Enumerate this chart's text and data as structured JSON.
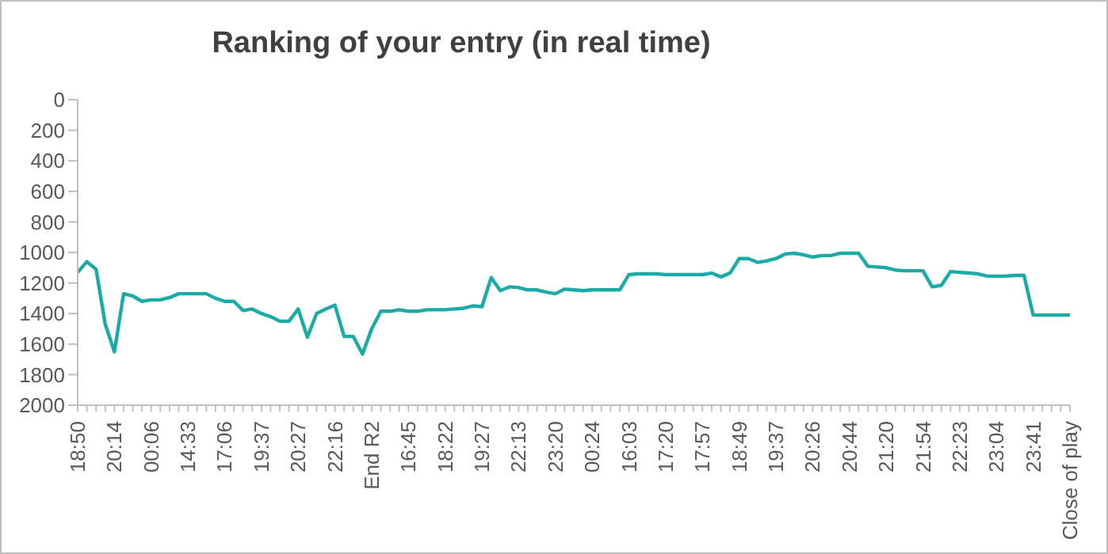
{
  "chart_data": {
    "type": "line",
    "title": "Ranking of your entry (in real time)",
    "categories": [
      "18:50",
      null,
      null,
      null,
      "20:14",
      null,
      null,
      null,
      "00:06",
      null,
      null,
      null,
      "14:33",
      null,
      null,
      null,
      "17:06",
      null,
      null,
      null,
      "19:37",
      null,
      null,
      null,
      "20:27",
      null,
      null,
      null,
      "22:16",
      null,
      null,
      null,
      "End R2",
      null,
      null,
      null,
      "16:45",
      null,
      null,
      null,
      "18:22",
      null,
      null,
      null,
      "19:27",
      null,
      null,
      null,
      "22:13",
      null,
      null,
      null,
      "23:20",
      null,
      null,
      null,
      "00:24",
      null,
      null,
      null,
      "16:03",
      null,
      null,
      null,
      "17:20",
      null,
      null,
      null,
      "17:57",
      null,
      null,
      null,
      "18:49",
      null,
      null,
      null,
      "19:37",
      null,
      null,
      null,
      "20:26",
      null,
      null,
      null,
      "20:44",
      null,
      null,
      null,
      "21:20",
      null,
      null,
      null,
      "21:54",
      null,
      null,
      null,
      "22:23",
      null,
      null,
      null,
      "23:04",
      null,
      null,
      null,
      "23:41",
      null,
      null,
      null,
      "Close of play"
    ],
    "series": [
      {
        "color": "#1aaba6",
        "values": [
          1130,
          1060,
          1110,
          1470,
          1650,
          1270,
          1285,
          1320,
          1310,
          1310,
          1295,
          1270,
          1270,
          1270,
          1270,
          1300,
          1320,
          1320,
          1380,
          1370,
          1400,
          1420,
          1450,
          1450,
          1370,
          1555,
          1400,
          1370,
          1345,
          1550,
          1550,
          1665,
          1500,
          1385,
          1385,
          1375,
          1385,
          1385,
          1375,
          1375,
          1375,
          1370,
          1365,
          1350,
          1355,
          1165,
          1250,
          1225,
          1230,
          1245,
          1245,
          1260,
          1270,
          1240,
          1245,
          1250,
          1245,
          1245,
          1245,
          1245,
          1145,
          1140,
          1140,
          1140,
          1145,
          1145,
          1145,
          1145,
          1145,
          1135,
          1160,
          1135,
          1040,
          1040,
          1065,
          1055,
          1040,
          1010,
          1005,
          1015,
          1030,
          1020,
          1020,
          1005,
          1005,
          1005,
          1090,
          1095,
          1100,
          1115,
          1120,
          1120,
          1120,
          1225,
          1215,
          1125,
          1130,
          1135,
          1140,
          1155,
          1155,
          1155,
          1150,
          1150,
          1410,
          1410,
          1410,
          1410,
          1410
        ]
      }
    ],
    "ylim": [
      2000,
      0
    ],
    "yticks": [
      0,
      200,
      400,
      600,
      800,
      1000,
      1200,
      1400,
      1600,
      1800,
      2000
    ],
    "grid": false,
    "legend": false,
    "marker": "none",
    "line_style": "solid"
  }
}
